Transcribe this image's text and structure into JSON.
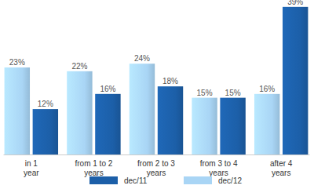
{
  "chart_data": {
    "type": "bar",
    "categories": [
      "in 1 year",
      "from 1 to 2 years",
      "from 2 to 3 years",
      "from 3 to 4 years",
      "after 4 years"
    ],
    "series": [
      {
        "name": "dec/12",
        "color": "#a9d5f5",
        "values": [
          23,
          22,
          24,
          15,
          16
        ],
        "value_labels": [
          "23%",
          "22%",
          "24%",
          "15%",
          "16%"
        ]
      },
      {
        "name": "dec/11",
        "color": "#1c5fa8",
        "values": [
          12,
          16,
          18,
          15,
          39
        ],
        "value_labels": [
          "12%",
          "16%",
          "18%",
          "15%",
          "39%"
        ]
      }
    ],
    "ylim": [
      0,
      40
    ],
    "data_labels": true,
    "tick_labels": "x",
    "legend": "bottom",
    "grid": false
  }
}
